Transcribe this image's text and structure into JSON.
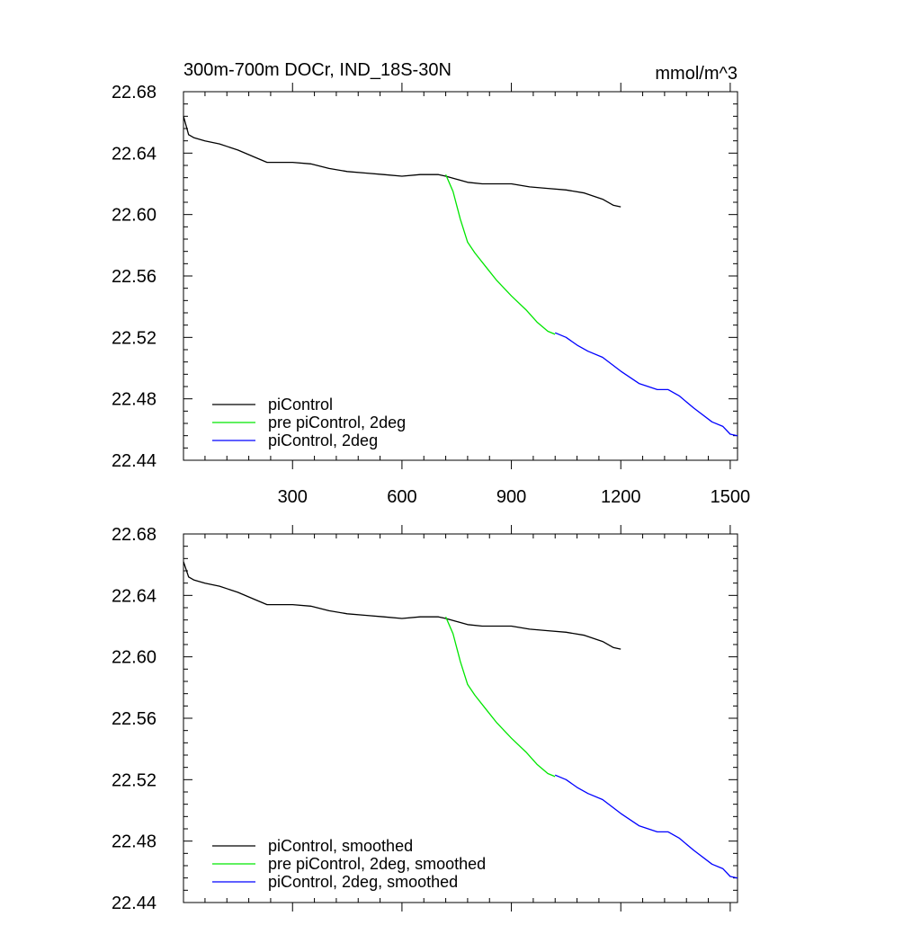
{
  "title": "300m-700m DOCr, IND_18S-30N",
  "units": "mmol/m^3",
  "colors": {
    "piControl": "#000000",
    "pre_2deg": "#00e600",
    "piControl_2deg": "#0000ff"
  },
  "chart_data": [
    {
      "type": "line",
      "title": "300m-700m DOCr, IND_18S-30N",
      "units_label": "mmol/m^3",
      "xlim": [
        1,
        1520
      ],
      "ylim": [
        22.44,
        22.68
      ],
      "x_ticks": [
        300,
        600,
        900,
        1200,
        1500
      ],
      "x_tick_labels": [
        "300",
        "600",
        "900",
        "1200",
        "1500"
      ],
      "y_ticks": [
        22.44,
        22.48,
        22.52,
        22.56,
        22.6,
        22.64,
        22.68
      ],
      "y_tick_labels": [
        "22.44",
        "22.48",
        "22.52",
        "22.56",
        "22.60",
        "22.64",
        "22.68"
      ],
      "legend_position": "bottom-left",
      "series": [
        {
          "name": "piControl",
          "color": "#000000",
          "x": [
            1,
            15,
            30,
            60,
            100,
            150,
            200,
            230,
            260,
            300,
            350,
            400,
            450,
            500,
            550,
            600,
            650,
            700,
            720,
            750,
            780,
            820,
            860,
            900,
            950,
            1000,
            1050,
            1100,
            1150,
            1180,
            1200
          ],
          "y": [
            22.664,
            22.652,
            22.65,
            22.648,
            22.646,
            22.642,
            22.637,
            22.634,
            22.634,
            22.634,
            22.633,
            22.63,
            22.628,
            22.627,
            22.626,
            22.625,
            22.626,
            22.626,
            22.625,
            22.623,
            22.621,
            22.62,
            22.62,
            22.62,
            22.618,
            22.617,
            22.616,
            22.614,
            22.61,
            22.606,
            22.605
          ]
        },
        {
          "name": "pre piControl, 2deg",
          "color": "#00e600",
          "x": [
            720,
            740,
            760,
            780,
            800,
            830,
            860,
            900,
            940,
            970,
            1000,
            1020
          ],
          "y": [
            22.626,
            22.615,
            22.597,
            22.582,
            22.575,
            22.566,
            22.557,
            22.547,
            22.538,
            22.53,
            22.524,
            22.522
          ]
        },
        {
          "name": "piControl, 2deg",
          "color": "#0000ff",
          "x": [
            1020,
            1050,
            1080,
            1110,
            1150,
            1200,
            1250,
            1300,
            1330,
            1360,
            1400,
            1450,
            1480,
            1500,
            1520
          ],
          "y": [
            22.523,
            22.52,
            22.515,
            22.511,
            22.507,
            22.498,
            22.49,
            22.486,
            22.486,
            22.482,
            22.474,
            22.465,
            22.462,
            22.457,
            22.456
          ]
        }
      ]
    },
    {
      "type": "line",
      "xlim": [
        1,
        1520
      ],
      "ylim": [
        22.44,
        22.68
      ],
      "x_ticks": [
        300,
        600,
        900,
        1200,
        1500
      ],
      "y_ticks": [
        22.44,
        22.48,
        22.52,
        22.56,
        22.6,
        22.64,
        22.68
      ],
      "y_tick_labels": [
        "22.44",
        "22.48",
        "22.52",
        "22.56",
        "22.60",
        "22.64",
        "22.68"
      ],
      "legend_position": "bottom-left",
      "series": [
        {
          "name": "piControl, smoothed",
          "color": "#000000",
          "x": [
            1,
            15,
            30,
            60,
            100,
            150,
            200,
            230,
            260,
            300,
            350,
            400,
            450,
            500,
            550,
            600,
            650,
            700,
            720,
            750,
            780,
            820,
            860,
            900,
            950,
            1000,
            1050,
            1100,
            1150,
            1180,
            1200
          ],
          "y": [
            22.662,
            22.652,
            22.65,
            22.648,
            22.646,
            22.642,
            22.637,
            22.634,
            22.634,
            22.634,
            22.633,
            22.63,
            22.628,
            22.627,
            22.626,
            22.625,
            22.626,
            22.626,
            22.625,
            22.623,
            22.621,
            22.62,
            22.62,
            22.62,
            22.618,
            22.617,
            22.616,
            22.614,
            22.61,
            22.606,
            22.605
          ]
        },
        {
          "name": "pre piControl, 2deg, smoothed",
          "color": "#00e600",
          "x": [
            720,
            740,
            760,
            780,
            800,
            830,
            860,
            900,
            940,
            970,
            1000,
            1020
          ],
          "y": [
            22.626,
            22.615,
            22.597,
            22.582,
            22.575,
            22.566,
            22.557,
            22.547,
            22.538,
            22.53,
            22.524,
            22.522
          ]
        },
        {
          "name": "piControl, 2deg, smoothed",
          "color": "#0000ff",
          "x": [
            1020,
            1050,
            1080,
            1110,
            1150,
            1200,
            1250,
            1300,
            1330,
            1360,
            1400,
            1450,
            1480,
            1500,
            1520
          ],
          "y": [
            22.523,
            22.52,
            22.515,
            22.511,
            22.507,
            22.498,
            22.49,
            22.486,
            22.486,
            22.482,
            22.474,
            22.465,
            22.462,
            22.457,
            22.456
          ]
        }
      ]
    }
  ]
}
